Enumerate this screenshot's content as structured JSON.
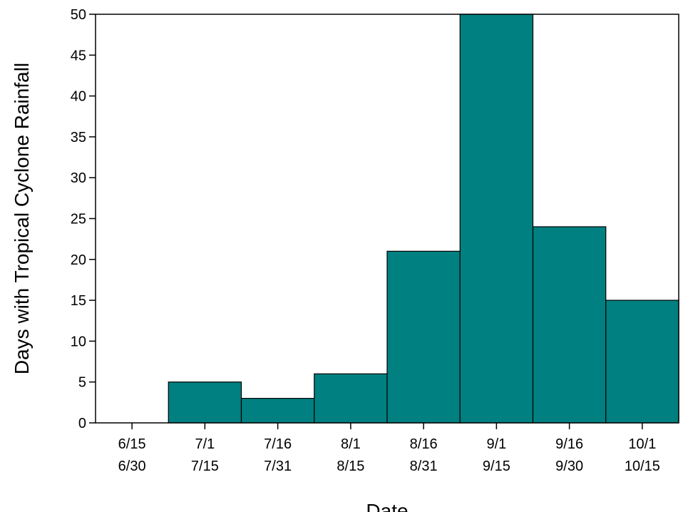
{
  "chart_data": {
    "type": "bar",
    "title": "",
    "xlabel": "Date",
    "ylabel": "Days with Tropical Cyclone Rainfall",
    "categories": [
      [
        "6/15",
        "6/30"
      ],
      [
        "7/1",
        "7/15"
      ],
      [
        "7/16",
        "7/31"
      ],
      [
        "8/1",
        "8/15"
      ],
      [
        "8/16",
        "8/31"
      ],
      [
        "9/1",
        "9/15"
      ],
      [
        "9/16",
        "9/30"
      ],
      [
        "10/1",
        "10/15"
      ]
    ],
    "values": [
      0,
      5,
      3,
      6,
      21,
      50,
      24,
      15
    ],
    "ylim": [
      0,
      50
    ],
    "yticks": [
      0,
      5,
      10,
      15,
      20,
      25,
      30,
      35,
      40,
      45,
      50
    ],
    "grid": false,
    "legend": "none",
    "bar_color": "#008080",
    "edge_color": "#000000"
  }
}
